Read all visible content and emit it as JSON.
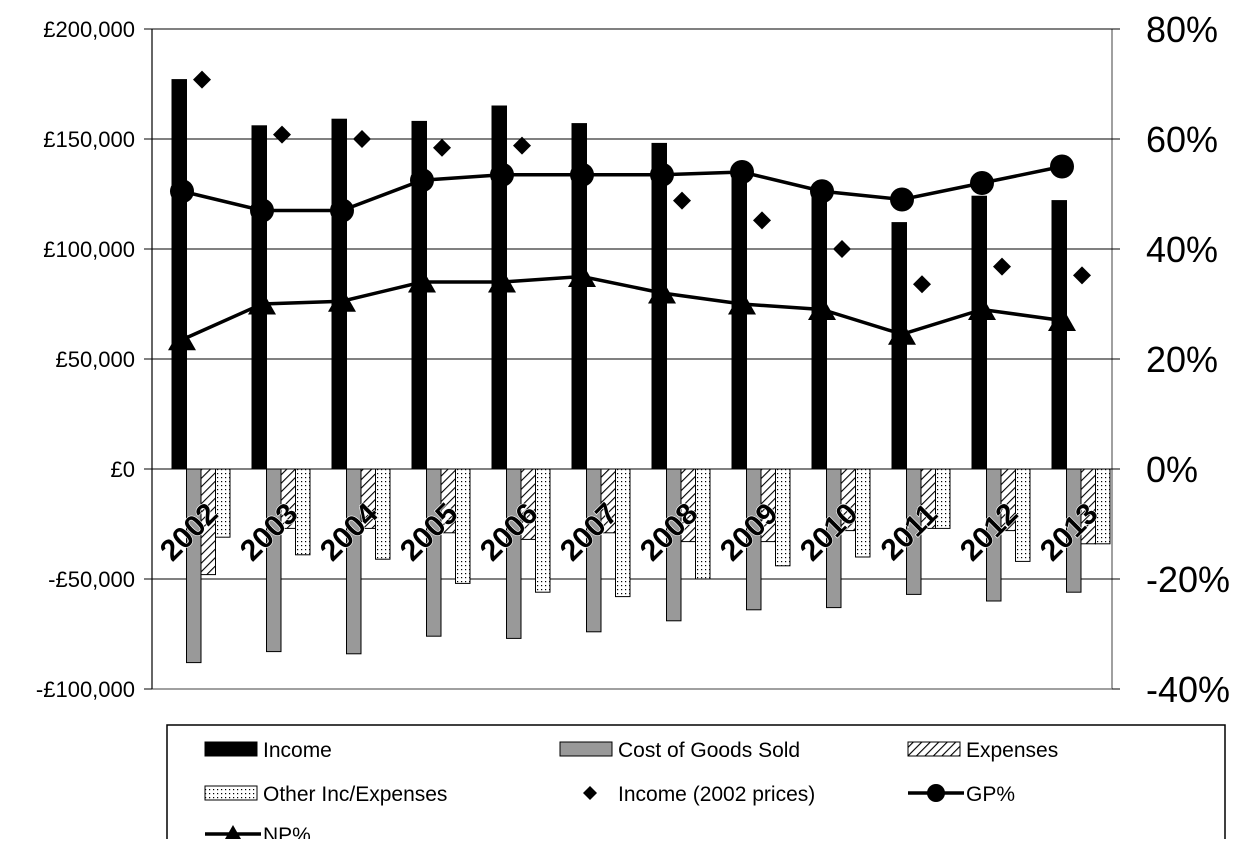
{
  "chart_data": {
    "type": "bar",
    "categories": [
      "2002",
      "2003",
      "2004",
      "2005",
      "2006",
      "2007",
      "2008",
      "2009",
      "2010",
      "2011",
      "2012",
      "2013"
    ],
    "bar_series": [
      {
        "name": "Income",
        "pattern": "solid-black",
        "values": [
          177000,
          156000,
          159000,
          158000,
          165000,
          157000,
          148000,
          137000,
          127000,
          112000,
          124000,
          122000
        ]
      },
      {
        "name": "Cost of Goods Sold",
        "pattern": "solid-gray",
        "values": [
          -88000,
          -83000,
          -84000,
          -76000,
          -77000,
          -74000,
          -69000,
          -64000,
          -63000,
          -57000,
          -60000,
          -56000
        ]
      },
      {
        "name": "Expenses",
        "pattern": "diagonal-hatch",
        "values": [
          -48000,
          -27000,
          -27000,
          -29000,
          -32000,
          -29000,
          -33000,
          -33000,
          -28000,
          -27000,
          -28000,
          -34000
        ]
      },
      {
        "name": "Other Inc/Expenses",
        "pattern": "dotted",
        "values": [
          -31000,
          -39000,
          -41000,
          -52000,
          -56000,
          -58000,
          -50000,
          -44000,
          -40000,
          -27000,
          -42000,
          -34000
        ]
      }
    ],
    "scatter_series": [
      {
        "name": "Income (2002 prices)",
        "marker": "diamond",
        "axis": "left",
        "values": [
          177000,
          152000,
          150000,
          146000,
          147000,
          null,
          122000,
          113000,
          100000,
          84000,
          92000,
          88000
        ]
      }
    ],
    "line_series": [
      {
        "name": "GP%",
        "marker": "circle",
        "axis": "right",
        "values": [
          50.5,
          47,
          47,
          52.5,
          53.5,
          53.5,
          53.5,
          54,
          50.5,
          49,
          52,
          55
        ]
      },
      {
        "name": "NP%",
        "marker": "triangle",
        "axis": "right",
        "values": [
          23.5,
          30,
          30.5,
          34,
          34,
          35,
          32,
          30,
          29,
          24.5,
          29,
          27
        ]
      }
    ],
    "y_left": {
      "min": -100000,
      "max": 200000,
      "ticks": [
        -100000,
        -50000,
        0,
        50000,
        100000,
        150000,
        200000
      ],
      "tick_labels": [
        "-£100,000",
        "-£50,000",
        "£0",
        "£50,000",
        "£100,000",
        "£150,000",
        "£200,000"
      ]
    },
    "y_right": {
      "min": -40,
      "max": 80,
      "ticks": [
        -40,
        -20,
        0,
        20,
        40,
        60,
        80
      ],
      "tick_labels": [
        "-40%",
        "-20%",
        "0%",
        "20%",
        "40%",
        "60%",
        "80%"
      ]
    },
    "gridlines": "horizontal",
    "legend": {
      "position": "bottom",
      "entries": [
        "Income",
        "Cost of Goods Sold",
        "Expenses",
        "Other Inc/Expenses",
        "Income (2002 prices)",
        "GP%",
        "NP%"
      ]
    },
    "colors": {
      "income": "#000000",
      "cogs": "#999999",
      "grid": "#000000",
      "frame": "#808080",
      "line": "#000000"
    }
  }
}
